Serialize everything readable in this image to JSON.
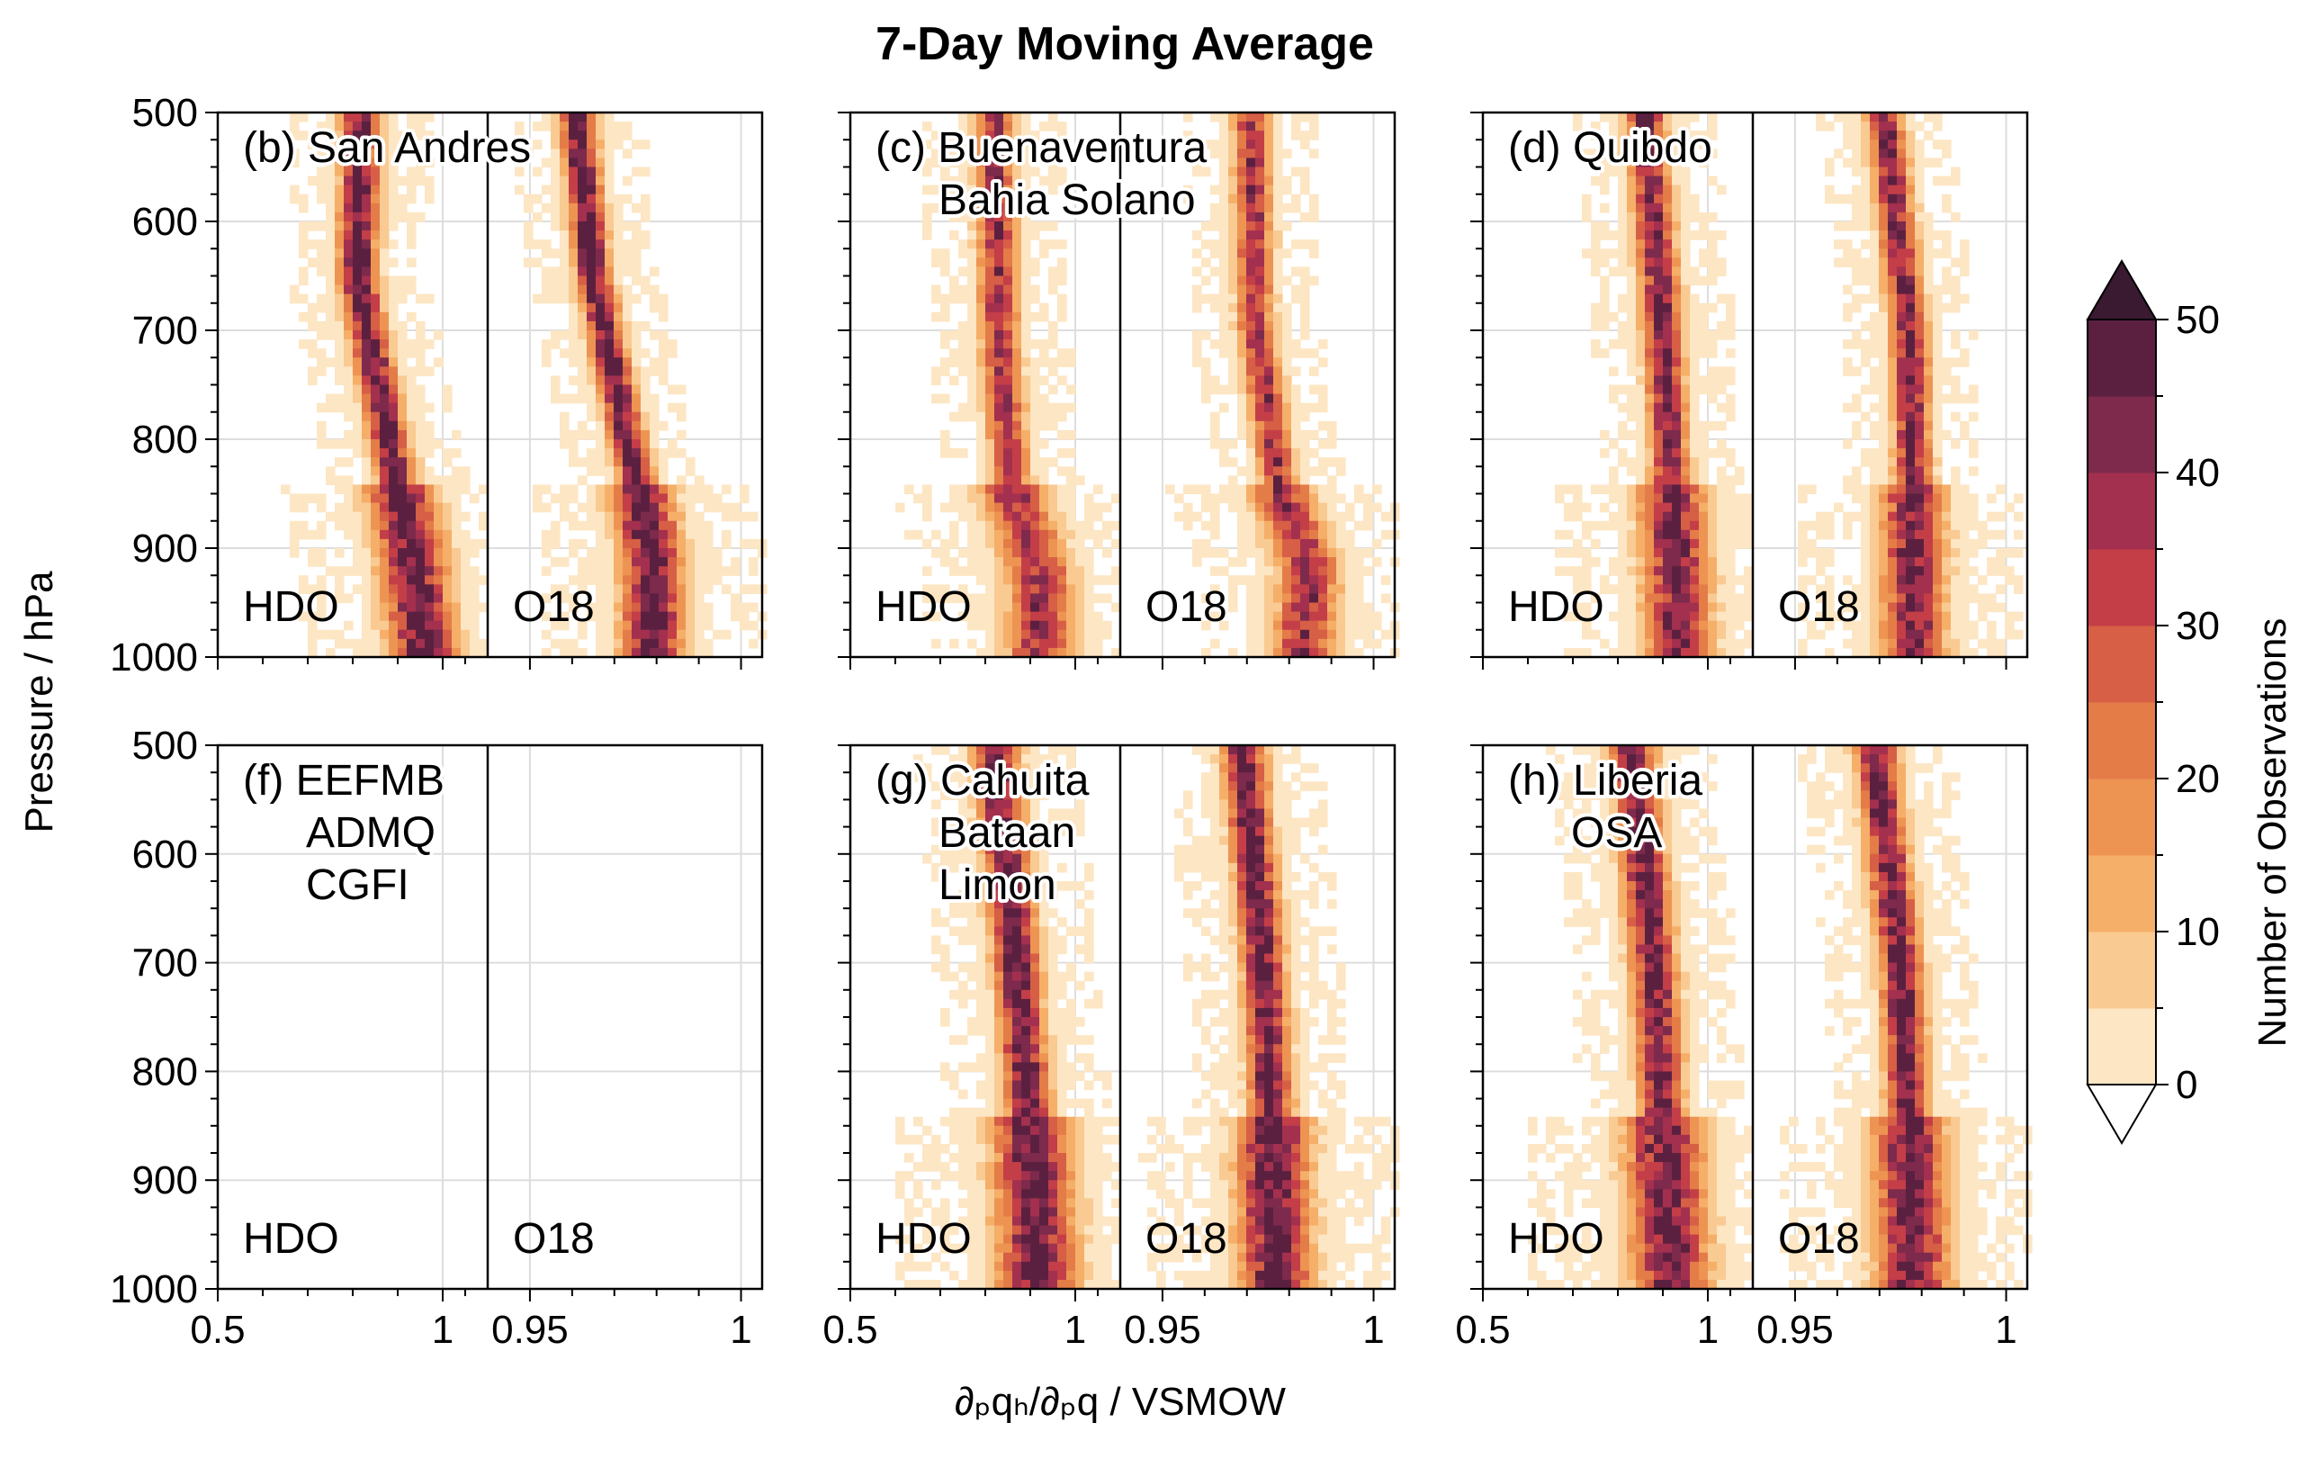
{
  "title": "7-Day Moving Average",
  "ylabel": "Pressure / hPa",
  "xlabel": "∂ₚqₕ/∂ₚq / VSMOW",
  "sublabels": [
    "HDO",
    "O18"
  ],
  "colorbar": {
    "label": "Number of Observations",
    "ticks": [
      "0",
      "10",
      "20",
      "30",
      "40",
      "50"
    ],
    "levels": [
      0,
      5,
      10,
      15,
      20,
      25,
      30,
      35,
      40,
      45,
      50
    ],
    "colors": [
      "#fde6c4",
      "#f9ca92",
      "#f5af68",
      "#ee9452",
      "#e47c48",
      "#d65f45",
      "#c43e48",
      "#a3304e",
      "#7d2a4c",
      "#5b2040"
    ],
    "extend": "both",
    "under_color": "#ffffff",
    "over_color": "#3a1a30"
  },
  "chart_data": {
    "type": "heatmap",
    "ylim": [
      1000,
      500
    ],
    "yticks": [
      "500",
      "600",
      "700",
      "800",
      "900",
      "1000"
    ],
    "hdo_xticks": [
      "0.5",
      "1"
    ],
    "o18_xticks": [
      "0.95",
      "1"
    ],
    "hdo_xlim": [
      0.5,
      1.1
    ],
    "o18_xlim": [
      0.94,
      1.005
    ],
    "grid": true,
    "panels": [
      {
        "label": "(b) San Andres",
        "lines": [
          "(b) San Andres"
        ],
        "empty": false,
        "seed": 11,
        "hdo_center": [
          [
            500,
            0.82
          ],
          [
            650,
            0.81
          ],
          [
            800,
            0.88
          ],
          [
            900,
            0.93
          ],
          [
            1000,
            0.96
          ]
        ],
        "o18_center": [
          [
            500,
            0.961
          ],
          [
            650,
            0.965
          ],
          [
            800,
            0.973
          ],
          [
            900,
            0.979
          ],
          [
            1000,
            0.979
          ]
        ],
        "hdo_width": 0.06,
        "o18_width": 0.006,
        "peak": 48
      },
      {
        "label": "(c) Buenaventura Bahia Solano",
        "lines": [
          "(c) Buenaventura",
          "Bahia Solano"
        ],
        "empty": false,
        "seed": 22,
        "hdo_center": [
          [
            500,
            0.82
          ],
          [
            700,
            0.83
          ],
          [
            850,
            0.86
          ],
          [
            920,
            0.92
          ],
          [
            1000,
            0.92
          ]
        ],
        "o18_center": [
          [
            500,
            0.971
          ],
          [
            700,
            0.972
          ],
          [
            850,
            0.978
          ],
          [
            920,
            0.985
          ],
          [
            1000,
            0.983
          ]
        ],
        "hdo_width": 0.06,
        "o18_width": 0.006,
        "peak": 38
      },
      {
        "label": "(d) Quibdo",
        "lines": [
          "(d) Quibdo"
        ],
        "empty": false,
        "seed": 33,
        "hdo_center": [
          [
            500,
            0.86
          ],
          [
            700,
            0.9
          ],
          [
            850,
            0.92
          ],
          [
            1000,
            0.94
          ]
        ],
        "o18_center": [
          [
            500,
            0.971
          ],
          [
            700,
            0.977
          ],
          [
            850,
            0.978
          ],
          [
            1000,
            0.978
          ]
        ],
        "hdo_width": 0.06,
        "o18_width": 0.006,
        "peak": 44
      },
      {
        "label": "(f) EEFMB ADMQ CGFI",
        "lines": [
          "(f) EEFMB",
          "ADMQ",
          "CGFI"
        ],
        "empty": true,
        "seed": 44,
        "hdo_center": [],
        "o18_center": [],
        "hdo_width": 0.06,
        "o18_width": 0.006,
        "peak": 0
      },
      {
        "label": "(g) Cahuita Bataan Limon",
        "lines": [
          "(g) Cahuita",
          "Bataan",
          "Limon"
        ],
        "empty": false,
        "seed": 55,
        "hdo_center": [
          [
            500,
            0.82
          ],
          [
            700,
            0.87
          ],
          [
            850,
            0.9
          ],
          [
            1000,
            0.92
          ]
        ],
        "o18_center": [
          [
            500,
            0.969
          ],
          [
            700,
            0.974
          ],
          [
            850,
            0.976
          ],
          [
            1000,
            0.977
          ]
        ],
        "hdo_width": 0.07,
        "o18_width": 0.007,
        "peak": 48
      },
      {
        "label": "(h) Liberia OSA",
        "lines": [
          "(h) Liberia",
          "OSA"
        ],
        "empty": false,
        "seed": 66,
        "hdo_center": [
          [
            500,
            0.83
          ],
          [
            700,
            0.88
          ],
          [
            850,
            0.9
          ],
          [
            1000,
            0.92
          ]
        ],
        "o18_center": [
          [
            500,
            0.969
          ],
          [
            700,
            0.975
          ],
          [
            850,
            0.977
          ],
          [
            1000,
            0.978
          ]
        ],
        "hdo_width": 0.07,
        "o18_width": 0.007,
        "peak": 46
      }
    ]
  }
}
